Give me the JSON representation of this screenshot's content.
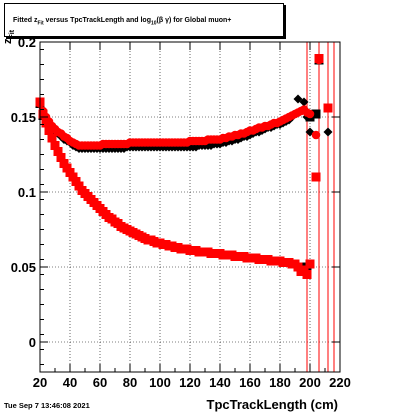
{
  "chart_data": {
    "type": "scatter",
    "title": {
      "prefix": "Fitted  z",
      "sub": "Fit",
      "middle": "  versus TpcTrackLength and log",
      "sub2": "10",
      "suffix": "(β  γ) for Global muon+"
    },
    "xlabel": "TpcTrackLength (cm)",
    "ylabel": "z",
    "ylabel_sub": "Fit",
    "xlim": [
      20,
      220
    ],
    "ylim": [
      -0.02,
      0.2
    ],
    "xticks": [
      20,
      40,
      60,
      80,
      100,
      120,
      140,
      160,
      180,
      200,
      220
    ],
    "yticks": [
      0,
      0.05,
      0.1,
      0.15,
      0.2
    ],
    "ytick_labels": [
      "0",
      "0.05",
      "0.1",
      "0.15",
      "0.2"
    ],
    "grid": true,
    "series": [
      {
        "color": "#000000",
        "marker": "diamond",
        "x": [
          20,
          22,
          24,
          26,
          28,
          30,
          32,
          34,
          36,
          38,
          40,
          42,
          44,
          46,
          48,
          50,
          52,
          54,
          56,
          58,
          60,
          62,
          64,
          66,
          68,
          70,
          72,
          74,
          76,
          78,
          80,
          82,
          84,
          86,
          88,
          90,
          92,
          94,
          96,
          98,
          100,
          102,
          104,
          106,
          108,
          110,
          112,
          114,
          116,
          118,
          120,
          122,
          124,
          126,
          128,
          130,
          132,
          134,
          136,
          138,
          140,
          142,
          144,
          146,
          148,
          150,
          152,
          154,
          156,
          158,
          160,
          162,
          164,
          166,
          168,
          170,
          172,
          174,
          176,
          178,
          180,
          182,
          184,
          186,
          188,
          190,
          192,
          194,
          196,
          198,
          200,
          204,
          206,
          212
        ],
        "y": [
          0.158,
          0.153,
          0.149,
          0.146,
          0.143,
          0.141,
          0.139,
          0.137,
          0.135,
          0.134,
          0.133,
          0.131,
          0.13,
          0.129,
          0.129,
          0.129,
          0.129,
          0.129,
          0.129,
          0.129,
          0.129,
          0.129,
          0.129,
          0.129,
          0.129,
          0.129,
          0.129,
          0.129,
          0.129,
          0.13,
          0.13,
          0.13,
          0.13,
          0.13,
          0.13,
          0.13,
          0.13,
          0.13,
          0.13,
          0.13,
          0.13,
          0.13,
          0.13,
          0.13,
          0.13,
          0.13,
          0.13,
          0.13,
          0.13,
          0.13,
          0.13,
          0.13,
          0.13,
          0.131,
          0.131,
          0.131,
          0.131,
          0.131,
          0.132,
          0.132,
          0.132,
          0.133,
          0.133,
          0.134,
          0.134,
          0.135,
          0.135,
          0.136,
          0.137,
          0.137,
          0.138,
          0.139,
          0.14,
          0.14,
          0.141,
          0.142,
          0.143,
          0.143,
          0.144,
          0.145,
          0.145,
          0.146,
          0.147,
          0.148,
          0.15,
          0.152,
          0.162,
          0.154,
          0.16,
          0.15,
          0.14,
          0.152,
          0.188,
          0.14
        ]
      },
      {
        "color": "#000000",
        "marker": "square",
        "x": [
          20,
          22,
          24,
          26,
          28,
          30,
          32,
          34,
          36,
          38,
          40,
          42,
          44,
          46,
          48,
          50,
          52,
          54,
          56,
          58,
          60,
          62,
          64,
          66,
          68,
          70,
          72,
          74,
          76,
          78,
          80,
          82,
          84,
          86,
          88,
          90,
          92,
          94,
          96,
          98,
          100,
          102,
          104,
          106,
          108,
          110,
          112,
          114,
          116,
          118,
          120,
          122,
          124,
          126,
          128,
          130,
          132,
          134,
          136,
          138,
          140,
          142,
          144,
          146,
          148,
          150,
          152,
          154,
          156,
          158,
          160,
          162,
          164,
          166,
          168,
          170,
          172,
          174,
          176,
          178,
          180,
          182,
          184,
          186,
          188,
          190,
          192,
          194,
          196,
          198,
          200,
          204,
          206
        ],
        "y": [
          0.159,
          0.151,
          0.146,
          0.141,
          0.136,
          0.131,
          0.127,
          0.123,
          0.119,
          0.116,
          0.113,
          0.11,
          0.107,
          0.104,
          0.101,
          0.099,
          0.097,
          0.095,
          0.093,
          0.091,
          0.089,
          0.087,
          0.085,
          0.083,
          0.082,
          0.08,
          0.079,
          0.077,
          0.076,
          0.075,
          0.074,
          0.073,
          0.072,
          0.071,
          0.07,
          0.069,
          0.068,
          0.068,
          0.067,
          0.066,
          0.066,
          0.065,
          0.065,
          0.064,
          0.064,
          0.063,
          0.063,
          0.062,
          0.062,
          0.062,
          0.061,
          0.061,
          0.061,
          0.06,
          0.06,
          0.06,
          0.06,
          0.059,
          0.059,
          0.059,
          0.059,
          0.058,
          0.058,
          0.058,
          0.058,
          0.057,
          0.057,
          0.057,
          0.057,
          0.056,
          0.056,
          0.056,
          0.056,
          0.055,
          0.055,
          0.055,
          0.055,
          0.054,
          0.054,
          0.054,
          0.054,
          0.053,
          0.053,
          0.053,
          0.052,
          0.052,
          0.05,
          0.048,
          0.05,
          0.046,
          0.15,
          0.152,
          0.188
        ]
      },
      {
        "color": "#ff0000",
        "marker": "circle",
        "x": [
          20,
          22,
          24,
          26,
          28,
          30,
          32,
          34,
          36,
          38,
          40,
          42,
          44,
          46,
          48,
          50,
          52,
          54,
          56,
          58,
          60,
          62,
          64,
          66,
          68,
          70,
          72,
          74,
          76,
          78,
          80,
          82,
          84,
          86,
          88,
          90,
          92,
          94,
          96,
          98,
          100,
          102,
          104,
          106,
          108,
          110,
          112,
          114,
          116,
          118,
          120,
          122,
          124,
          126,
          128,
          130,
          132,
          134,
          136,
          138,
          140,
          142,
          144,
          146,
          148,
          150,
          152,
          154,
          156,
          158,
          160,
          162,
          164,
          166,
          168,
          170,
          172,
          174,
          176,
          178,
          180,
          182,
          184,
          186,
          188,
          190,
          192,
          194,
          196,
          198,
          200,
          204,
          206
        ],
        "y": [
          0.159,
          0.154,
          0.15,
          0.147,
          0.144,
          0.142,
          0.14,
          0.139,
          0.137,
          0.136,
          0.134,
          0.133,
          0.132,
          0.131,
          0.131,
          0.131,
          0.131,
          0.131,
          0.131,
          0.131,
          0.131,
          0.132,
          0.132,
          0.132,
          0.132,
          0.132,
          0.132,
          0.132,
          0.132,
          0.132,
          0.133,
          0.133,
          0.133,
          0.133,
          0.133,
          0.133,
          0.133,
          0.133,
          0.133,
          0.133,
          0.133,
          0.133,
          0.133,
          0.133,
          0.133,
          0.133,
          0.133,
          0.133,
          0.133,
          0.133,
          0.134,
          0.134,
          0.134,
          0.134,
          0.134,
          0.134,
          0.135,
          0.135,
          0.135,
          0.135,
          0.135,
          0.136,
          0.136,
          0.137,
          0.137,
          0.138,
          0.138,
          0.139,
          0.139,
          0.14,
          0.141,
          0.141,
          0.142,
          0.143,
          0.143,
          0.144,
          0.144,
          0.145,
          0.146,
          0.146,
          0.147,
          0.148,
          0.149,
          0.15,
          0.151,
          0.152,
          0.153,
          0.154,
          0.155,
          0.153,
          0.152,
          0.138,
          0.188
        ]
      },
      {
        "color": "#ff0000",
        "marker": "square",
        "x": [
          20,
          22,
          24,
          26,
          28,
          30,
          32,
          34,
          36,
          38,
          40,
          42,
          44,
          46,
          48,
          50,
          52,
          54,
          56,
          58,
          60,
          62,
          64,
          66,
          68,
          70,
          72,
          74,
          76,
          78,
          80,
          82,
          84,
          86,
          88,
          90,
          92,
          94,
          96,
          98,
          100,
          102,
          104,
          106,
          108,
          110,
          112,
          114,
          116,
          118,
          120,
          122,
          124,
          126,
          128,
          130,
          132,
          134,
          136,
          138,
          140,
          142,
          144,
          146,
          148,
          150,
          152,
          154,
          156,
          158,
          160,
          162,
          164,
          166,
          168,
          170,
          172,
          174,
          176,
          178,
          180,
          182,
          184,
          186,
          188,
          190,
          192,
          194,
          196,
          198,
          200,
          204,
          206,
          212
        ],
        "y": [
          0.16,
          0.152,
          0.146,
          0.141,
          0.136,
          0.131,
          0.127,
          0.123,
          0.119,
          0.116,
          0.113,
          0.11,
          0.107,
          0.104,
          0.101,
          0.099,
          0.097,
          0.095,
          0.093,
          0.091,
          0.089,
          0.087,
          0.085,
          0.083,
          0.082,
          0.08,
          0.079,
          0.077,
          0.076,
          0.075,
          0.074,
          0.073,
          0.072,
          0.071,
          0.07,
          0.069,
          0.068,
          0.068,
          0.067,
          0.066,
          0.066,
          0.065,
          0.065,
          0.064,
          0.064,
          0.063,
          0.063,
          0.062,
          0.062,
          0.062,
          0.061,
          0.061,
          0.061,
          0.06,
          0.06,
          0.06,
          0.06,
          0.059,
          0.059,
          0.059,
          0.059,
          0.058,
          0.058,
          0.058,
          0.058,
          0.057,
          0.057,
          0.057,
          0.057,
          0.056,
          0.056,
          0.056,
          0.056,
          0.055,
          0.055,
          0.055,
          0.055,
          0.054,
          0.054,
          0.054,
          0.054,
          0.053,
          0.053,
          0.053,
          0.052,
          0.052,
          0.05,
          0.047,
          0.048,
          0.045,
          0.052,
          0.11,
          0.189,
          0.156
        ]
      }
    ],
    "error_bars": [
      {
        "x": 206,
        "low": -0.02,
        "high": 0.2
      },
      {
        "x": 212,
        "low": -0.02,
        "high": 0.2
      },
      {
        "x": 216,
        "low": -0.02,
        "high": 0.2
      },
      {
        "x": 198,
        "low": -0.02,
        "high": 0.2
      }
    ]
  },
  "footer": {
    "datestamp": "Tue Sep  7 13:46:08 2021"
  }
}
